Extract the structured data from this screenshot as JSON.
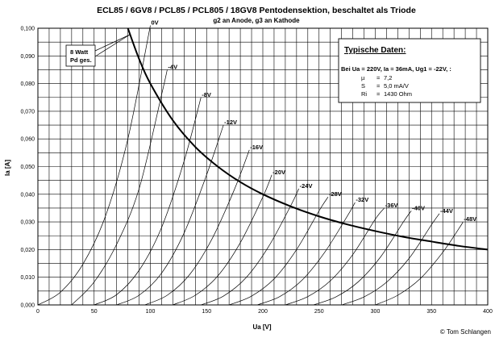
{
  "chart_data": {
    "type": "line",
    "title": "ECL85 / 6GV8 / PCL85 /  PCL805 / 18GV8 Pentodensektion, beschaltet als Triode",
    "subtitle": "g2 an Anode, g3 an Kathode",
    "xlabel": "Ua [V]",
    "ylabel": "Ia [A]",
    "xlim": [
      0,
      400
    ],
    "ylim": [
      0,
      0.1
    ],
    "x_ticks": [
      "0",
      "50",
      "100",
      "150",
      "200",
      "250",
      "300",
      "350",
      "400"
    ],
    "y_ticks": [
      "0,000",
      "0,010",
      "0,020",
      "0,030",
      "0,040",
      "0,050",
      "0,060",
      "0,070",
      "0,080",
      "0,090",
      "0,100"
    ],
    "grid": true,
    "copyright": "© Tom Schlangen",
    "series": [
      {
        "name": "0V",
        "points": [
          [
            0,
            0
          ],
          [
            20,
            0.0046
          ],
          [
            40,
            0.0147
          ],
          [
            60,
            0.032
          ],
          [
            80,
            0.06
          ],
          [
            100,
            0.101
          ]
        ]
      },
      {
        "name": "-4V",
        "points": [
          [
            30,
            0
          ],
          [
            50,
            0.0083
          ],
          [
            70,
            0.0219
          ],
          [
            90,
            0.042
          ],
          [
            110,
            0.076
          ],
          [
            115,
            0.085
          ]
        ]
      },
      {
        "name": "-8V",
        "points": [
          [
            50,
            0
          ],
          [
            70,
            0.0037
          ],
          [
            90,
            0.0125
          ],
          [
            110,
            0.028
          ],
          [
            130,
            0.052
          ],
          [
            145,
            0.075
          ]
        ]
      },
      {
        "name": "-12V",
        "points": [
          [
            70,
            0
          ],
          [
            90,
            0.0035
          ],
          [
            110,
            0.0115
          ],
          [
            130,
            0.026
          ],
          [
            150,
            0.047
          ],
          [
            165,
            0.065
          ]
        ]
      },
      {
        "name": "-16V",
        "points": [
          [
            95,
            0
          ],
          [
            115,
            0.0035
          ],
          [
            135,
            0.011
          ],
          [
            155,
            0.024
          ],
          [
            175,
            0.042
          ],
          [
            188,
            0.056
          ]
        ]
      },
      {
        "name": "-20V",
        "points": [
          [
            120,
            0
          ],
          [
            140,
            0.0035
          ],
          [
            160,
            0.0105
          ],
          [
            180,
            0.0225
          ],
          [
            200,
            0.039
          ],
          [
            208,
            0.047
          ]
        ]
      },
      {
        "name": "-24V",
        "points": [
          [
            145,
            0
          ],
          [
            165,
            0.0032
          ],
          [
            185,
            0.0098
          ],
          [
            205,
            0.021
          ],
          [
            225,
            0.036
          ],
          [
            232,
            0.042
          ]
        ]
      },
      {
        "name": "-28V",
        "points": [
          [
            170,
            0
          ],
          [
            190,
            0.0032
          ],
          [
            210,
            0.0094
          ],
          [
            230,
            0.02
          ],
          [
            250,
            0.034
          ],
          [
            258,
            0.039
          ]
        ]
      },
      {
        "name": "-32V",
        "points": [
          [
            195,
            0
          ],
          [
            215,
            0.003
          ],
          [
            235,
            0.009
          ],
          [
            255,
            0.019
          ],
          [
            275,
            0.032
          ],
          [
            282,
            0.037
          ]
        ]
      },
      {
        "name": "-36V",
        "points": [
          [
            220,
            0
          ],
          [
            240,
            0.003
          ],
          [
            260,
            0.0087
          ],
          [
            280,
            0.0182
          ],
          [
            300,
            0.031
          ],
          [
            308,
            0.035
          ]
        ]
      },
      {
        "name": "-40V",
        "points": [
          [
            245,
            0
          ],
          [
            265,
            0.0029
          ],
          [
            285,
            0.0084
          ],
          [
            305,
            0.0175
          ],
          [
            325,
            0.03
          ],
          [
            332,
            0.034
          ]
        ]
      },
      {
        "name": "-44V",
        "points": [
          [
            270,
            0
          ],
          [
            290,
            0.0029
          ],
          [
            310,
            0.0082
          ],
          [
            330,
            0.0168
          ],
          [
            350,
            0.029
          ],
          [
            357,
            0.033
          ]
        ]
      },
      {
        "name": "-48V",
        "points": [
          [
            300,
            0
          ],
          [
            320,
            0.0035
          ],
          [
            340,
            0.0095
          ],
          [
            360,
            0.019
          ],
          [
            375,
            0.028
          ],
          [
            378,
            0.03
          ]
        ]
      },
      {
        "name": "8 Watt Pd ges.",
        "points": [
          [
            80,
            0.1
          ],
          [
            90,
            0.0889
          ],
          [
            100,
            0.08
          ],
          [
            120,
            0.0667
          ],
          [
            140,
            0.0571
          ],
          [
            160,
            0.05
          ],
          [
            180,
            0.0444
          ],
          [
            200,
            0.04
          ],
          [
            225,
            0.0356
          ],
          [
            250,
            0.032
          ],
          [
            275,
            0.0291
          ],
          [
            300,
            0.0267
          ],
          [
            325,
            0.0246
          ],
          [
            350,
            0.0229
          ],
          [
            375,
            0.0213
          ],
          [
            400,
            0.02
          ]
        ]
      }
    ],
    "pd_label": [
      "8 Watt",
      "Pd ges."
    ],
    "datenbox": {
      "title": "Typische Daten:",
      "line1": "Bei Ua = 220V, Ia = 36mA, Ug1 = -22V, :",
      "rows": [
        {
          "name": "µ",
          "eq": "=",
          "val": "7,2"
        },
        {
          "name": "S",
          "eq": "=",
          "val": "5,0 mA/V"
        },
        {
          "name": "Ri",
          "eq": "=",
          "val": "1430 Ohm"
        }
      ]
    }
  }
}
